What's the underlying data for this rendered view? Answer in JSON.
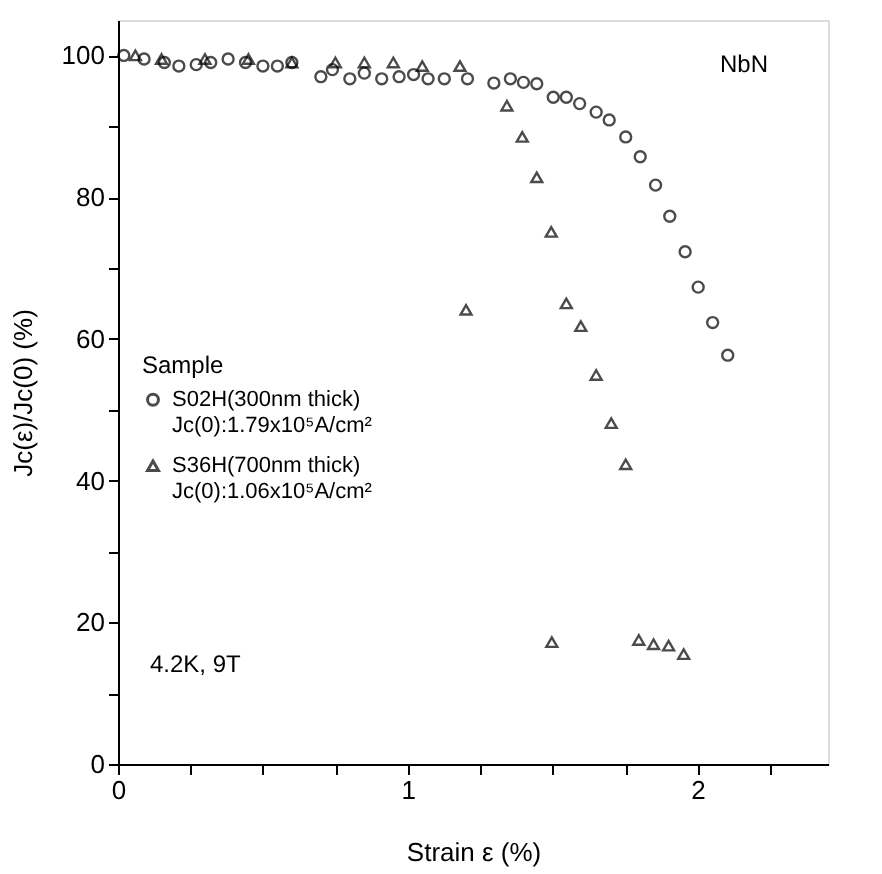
{
  "chart_data": {
    "type": "scatter",
    "xlabel": "Strain ε (%)",
    "ylabel": "Jc(ε)/Jc(0) (%)",
    "legend_title": "Sample",
    "legend": "left",
    "grid": false,
    "xlim": [
      0,
      2.45
    ],
    "ylim": [
      0,
      105
    ],
    "xticks": [
      0,
      {
        "value": 0.25,
        "label": null
      },
      {
        "value": 0.5,
        "label": null
      },
      {
        "value": 0.75,
        "label": null
      },
      1,
      {
        "value": 1.25,
        "label": null
      },
      {
        "value": 1.5,
        "label": null
      },
      {
        "value": 1.75,
        "label": null
      },
      2,
      {
        "value": 2.25,
        "label": null
      }
    ],
    "yticks": [
      0,
      {
        "value": 10,
        "label": null
      },
      20,
      {
        "value": 30,
        "label": null
      },
      40,
      {
        "value": 50,
        "label": null
      },
      60,
      {
        "value": 70,
        "label": null
      },
      80,
      {
        "value": 90,
        "label": null
      },
      100
    ],
    "annotations": [
      "NbN",
      "4.2K, 9T"
    ],
    "series": [
      {
        "name": "S02H(300nm thick)\nJc(0):1.79x10⁵A/cm²",
        "color": "#000000",
        "marker": "circle",
        "x": [
          0.02,
          0.09,
          0.16,
          0.21,
          0.27,
          0.32,
          0.38,
          0.44,
          0.5,
          0.55,
          0.6,
          0.7,
          0.74,
          0.8,
          0.85,
          0.91,
          0.97,
          1.02,
          1.07,
          1.126,
          1.206,
          1.297,
          1.354,
          1.399,
          1.445,
          1.502,
          1.547,
          1.593,
          1.65,
          1.695,
          1.752,
          1.802,
          1.855,
          1.904,
          1.957,
          2.002,
          2.052,
          2.104
        ],
        "values": [
          100,
          99.5,
          99,
          98.5,
          98.7,
          99,
          99.5,
          99,
          98.5,
          98.5,
          99,
          97,
          98,
          96.7,
          97.5,
          96.7,
          97,
          97.3,
          96.7,
          96.7,
          96.7,
          96.1,
          96.7,
          96.2,
          96,
          94.1,
          94.1,
          93.2,
          92,
          90.9,
          88.5,
          85.7,
          81.7,
          77.3,
          72.3,
          67.3,
          62.3,
          57.7
        ]
      },
      {
        "name": "S36H(700nm thick)\nJc(0):1.06x10⁵A/cm²",
        "color": "#000000",
        "marker": "triangle",
        "x": [
          0.06,
          0.15,
          0.3,
          0.45,
          0.6,
          0.75,
          0.85,
          0.95,
          1.05,
          1.18,
          1.342,
          1.395,
          1.445,
          1.495,
          1.201,
          1.547,
          1.597,
          1.65,
          1.702,
          1.752,
          1.497,
          1.797,
          1.848,
          1.9,
          1.952
        ],
        "values": [
          100,
          99.5,
          99.5,
          99.5,
          99,
          99,
          99,
          99,
          98.5,
          98.5,
          92.9,
          88.5,
          82.8,
          75.1,
          64.1,
          65,
          61.8,
          54.9,
          48.1,
          42.3,
          17.2,
          17.5,
          16.9,
          16.7,
          15.5
        ]
      }
    ]
  }
}
